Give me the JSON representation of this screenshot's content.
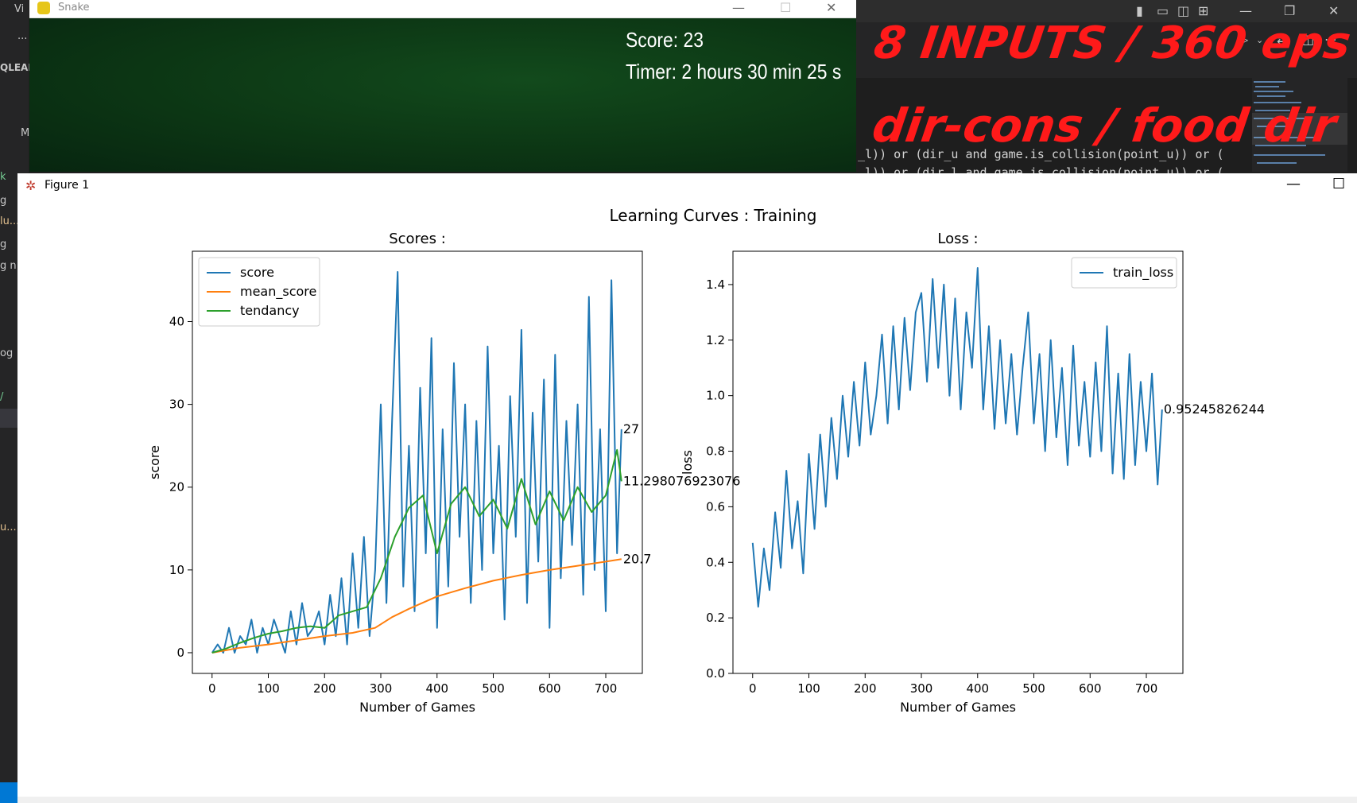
{
  "vscode": {
    "left_fragments": [
      "Vi",
      "...",
      "QLEAR",
      "M",
      "k",
      "g",
      "lu...",
      "g",
      "g n",
      "og",
      "/",
      "u..."
    ],
    "code_lines": [
      "_l)) or (dir_u and game.is_collision(point_u)) or (",
      "_l)) or (dir_l and game.is_collision(point_u)) or ("
    ]
  },
  "annotation": {
    "line1": "8 INPUTS / 360 eps",
    "line2": "dir-cons / food dir"
  },
  "snake_window": {
    "title": "Snake",
    "score_text": "Score: 23",
    "timer_text": "Timer: 2 hours 30 min 25 s"
  },
  "figure_window": {
    "title": "Figure 1",
    "suptitle": "Learning Curves : Training"
  },
  "chart_data": [
    {
      "type": "line",
      "title": "Scores :",
      "xlabel": "Number of Games",
      "ylabel": "score",
      "xlim": [
        -35,
        765
      ],
      "ylim": [
        -2.5,
        48.5
      ],
      "xticks": [
        0,
        100,
        200,
        300,
        400,
        500,
        600,
        700
      ],
      "yticks": [
        0,
        10,
        20,
        30,
        40
      ],
      "legend": "top-left",
      "series": [
        {
          "name": "score",
          "color": "#1f77b4",
          "x": [
            0,
            10,
            20,
            30,
            40,
            50,
            60,
            70,
            80,
            90,
            100,
            110,
            120,
            130,
            140,
            150,
            160,
            170,
            180,
            190,
            200,
            210,
            220,
            230,
            240,
            250,
            260,
            270,
            280,
            290,
            300,
            310,
            320,
            330,
            340,
            350,
            360,
            370,
            380,
            390,
            400,
            410,
            420,
            430,
            440,
            450,
            460,
            470,
            480,
            490,
            500,
            510,
            520,
            530,
            540,
            550,
            560,
            570,
            580,
            590,
            600,
            610,
            620,
            630,
            640,
            650,
            660,
            670,
            680,
            690,
            700,
            710,
            720,
            728
          ],
          "values": [
            0,
            1,
            0,
            3,
            0,
            2,
            1,
            4,
            0,
            3,
            1,
            4,
            2,
            0,
            5,
            1,
            6,
            2,
            3,
            5,
            1,
            7,
            2,
            9,
            1,
            12,
            3,
            14,
            2,
            10,
            30,
            6,
            28,
            46,
            8,
            25,
            5,
            32,
            12,
            38,
            3,
            27,
            8,
            35,
            14,
            30,
            6,
            28,
            10,
            37,
            12,
            25,
            4,
            31,
            14,
            39,
            6,
            29,
            11,
            33,
            3,
            36,
            9,
            28,
            13,
            30,
            7,
            43,
            10,
            27,
            5,
            45,
            12,
            27
          ]
        },
        {
          "name": "mean_score",
          "color": "#ff7f0e",
          "x": [
            0,
            50,
            100,
            150,
            200,
            250,
            290,
            320,
            350,
            380,
            400,
            450,
            500,
            550,
            600,
            650,
            700,
            728
          ],
          "values": [
            0,
            0.6,
            1.0,
            1.5,
            2.0,
            2.4,
            3.0,
            4.3,
            5.3,
            6.2,
            6.8,
            7.8,
            8.7,
            9.4,
            10.0,
            10.5,
            11.0,
            11.3
          ]
        },
        {
          "name": "tendancy",
          "color": "#2ca02c",
          "x": [
            0,
            25,
            50,
            75,
            100,
            125,
            150,
            175,
            200,
            225,
            250,
            275,
            300,
            325,
            350,
            375,
            400,
            425,
            450,
            475,
            500,
            525,
            550,
            575,
            600,
            625,
            650,
            675,
            700,
            720,
            728
          ],
          "values": [
            0,
            0.5,
            1.2,
            1.8,
            2.3,
            2.6,
            3.0,
            3.2,
            3.0,
            4.5,
            5.0,
            5.5,
            9.0,
            14.0,
            17.5,
            19.0,
            12.0,
            18.0,
            20.0,
            16.5,
            18.5,
            15.0,
            21.0,
            15.5,
            19.5,
            16.0,
            20.0,
            17.0,
            19.0,
            24.5,
            20.7
          ]
        }
      ],
      "annotations": [
        "27",
        "20.7",
        "11.298076923076"
      ]
    },
    {
      "type": "line",
      "title": "Loss :",
      "xlabel": "Number of Games",
      "ylabel": "loss",
      "xlim": [
        -35,
        765
      ],
      "ylim": [
        0.0,
        1.52
      ],
      "xticks": [
        0,
        100,
        200,
        300,
        400,
        500,
        600,
        700
      ],
      "yticks": [
        0.0,
        0.2,
        0.4,
        0.6,
        0.8,
        1.0,
        1.2,
        1.4
      ],
      "legend": "top-right",
      "series": [
        {
          "name": "train_loss",
          "color": "#1f77b4",
          "x": [
            0,
            10,
            20,
            30,
            40,
            50,
            60,
            70,
            80,
            90,
            100,
            110,
            120,
            130,
            140,
            150,
            160,
            170,
            180,
            190,
            200,
            210,
            220,
            230,
            240,
            250,
            260,
            270,
            280,
            290,
            300,
            310,
            320,
            330,
            340,
            350,
            360,
            370,
            380,
            390,
            400,
            410,
            420,
            430,
            440,
            450,
            460,
            470,
            480,
            490,
            500,
            510,
            520,
            530,
            540,
            550,
            560,
            570,
            580,
            590,
            600,
            610,
            620,
            630,
            640,
            650,
            660,
            670,
            680,
            690,
            700,
            710,
            720,
            728
          ],
          "values": [
            0.47,
            0.24,
            0.45,
            0.3,
            0.58,
            0.38,
            0.73,
            0.45,
            0.62,
            0.36,
            0.79,
            0.52,
            0.86,
            0.6,
            0.92,
            0.7,
            1.0,
            0.78,
            1.05,
            0.82,
            1.12,
            0.86,
            1.0,
            1.22,
            0.9,
            1.25,
            0.95,
            1.28,
            1.02,
            1.3,
            1.37,
            1.05,
            1.42,
            1.1,
            1.4,
            1.0,
            1.35,
            0.95,
            1.3,
            1.1,
            1.46,
            0.95,
            1.25,
            0.88,
            1.2,
            0.9,
            1.15,
            0.86,
            1.1,
            1.3,
            0.9,
            1.15,
            0.8,
            1.2,
            0.85,
            1.1,
            0.75,
            1.18,
            0.82,
            1.05,
            0.78,
            1.12,
            0.8,
            1.25,
            0.72,
            1.08,
            0.7,
            1.15,
            0.75,
            1.05,
            0.8,
            1.08,
            0.68,
            0.95
          ]
        }
      ],
      "annotations": [
        "0.95245826244"
      ]
    }
  ]
}
